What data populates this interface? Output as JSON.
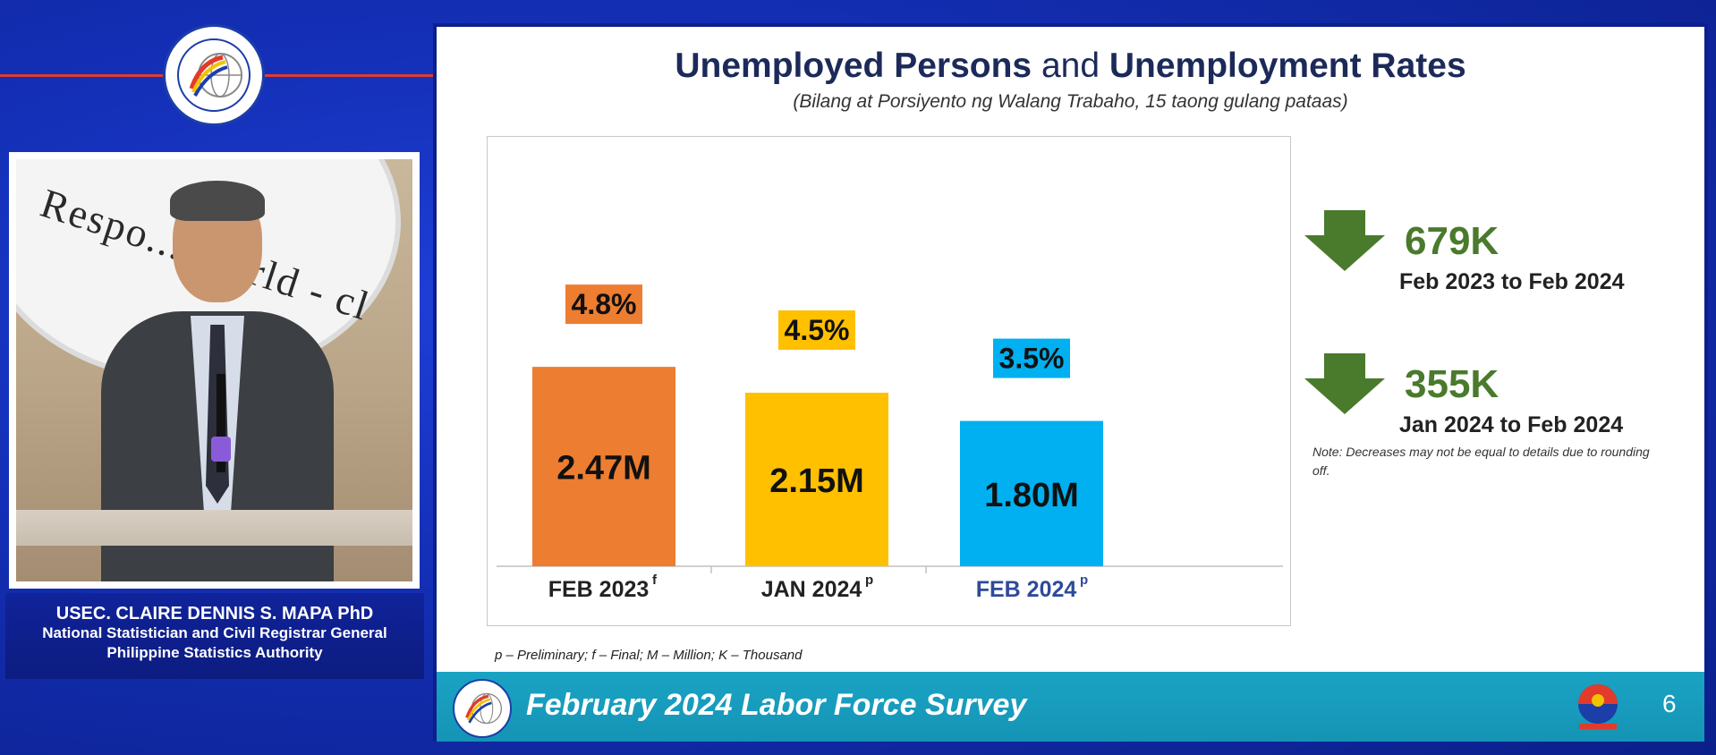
{
  "presenter": {
    "name": "USEC. CLAIRE DENNIS S. MAPA PhD",
    "title": "National Statistician and Civil Registrar General",
    "org": "Philippine Statistics Authority",
    "video_bg_text": "Respo... World - cl"
  },
  "slide": {
    "title_bold1": "Unemployed Persons",
    "title_mid": " and ",
    "title_bold2": "Unemployment Rates",
    "subtitle": "(Bilang at Porsiyento ng Walang Trabaho, 15 taong gulang pataas)",
    "footnote": "p – Preliminary; f – Final; M – Million; K – Thousand",
    "note": "Note: Decreases may not be equal to details due to rounding off.",
    "footer_title": "February 2024 Labor Force Survey",
    "page_number": "6",
    "decreases": [
      {
        "amount": "679K",
        "period": "Feb 2023 to Feb 2024"
      },
      {
        "amount": "355K",
        "period": "Jan 2024 to Feb 2024"
      }
    ]
  },
  "chart_data": {
    "type": "bar",
    "title": "Unemployed Persons and Unemployment Rates",
    "categories": [
      "FEB 2023",
      "JAN 2024",
      "FEB 2024"
    ],
    "category_superscripts": [
      "f",
      "p",
      "p"
    ],
    "values": [
      2.47,
      2.15,
      1.8
    ],
    "value_labels": [
      "2.47M",
      "2.15M",
      "1.80M"
    ],
    "rates": [
      4.8,
      4.5,
      3.5
    ],
    "rate_labels": [
      "4.8%",
      "4.5%",
      "3.5%"
    ],
    "colors": [
      "#ed7d31",
      "#ffc000",
      "#00b0f0"
    ],
    "label_colors": [
      "#222222",
      "#222222",
      "#2e4a9a"
    ],
    "ylim": [
      0,
      4.1
    ]
  }
}
